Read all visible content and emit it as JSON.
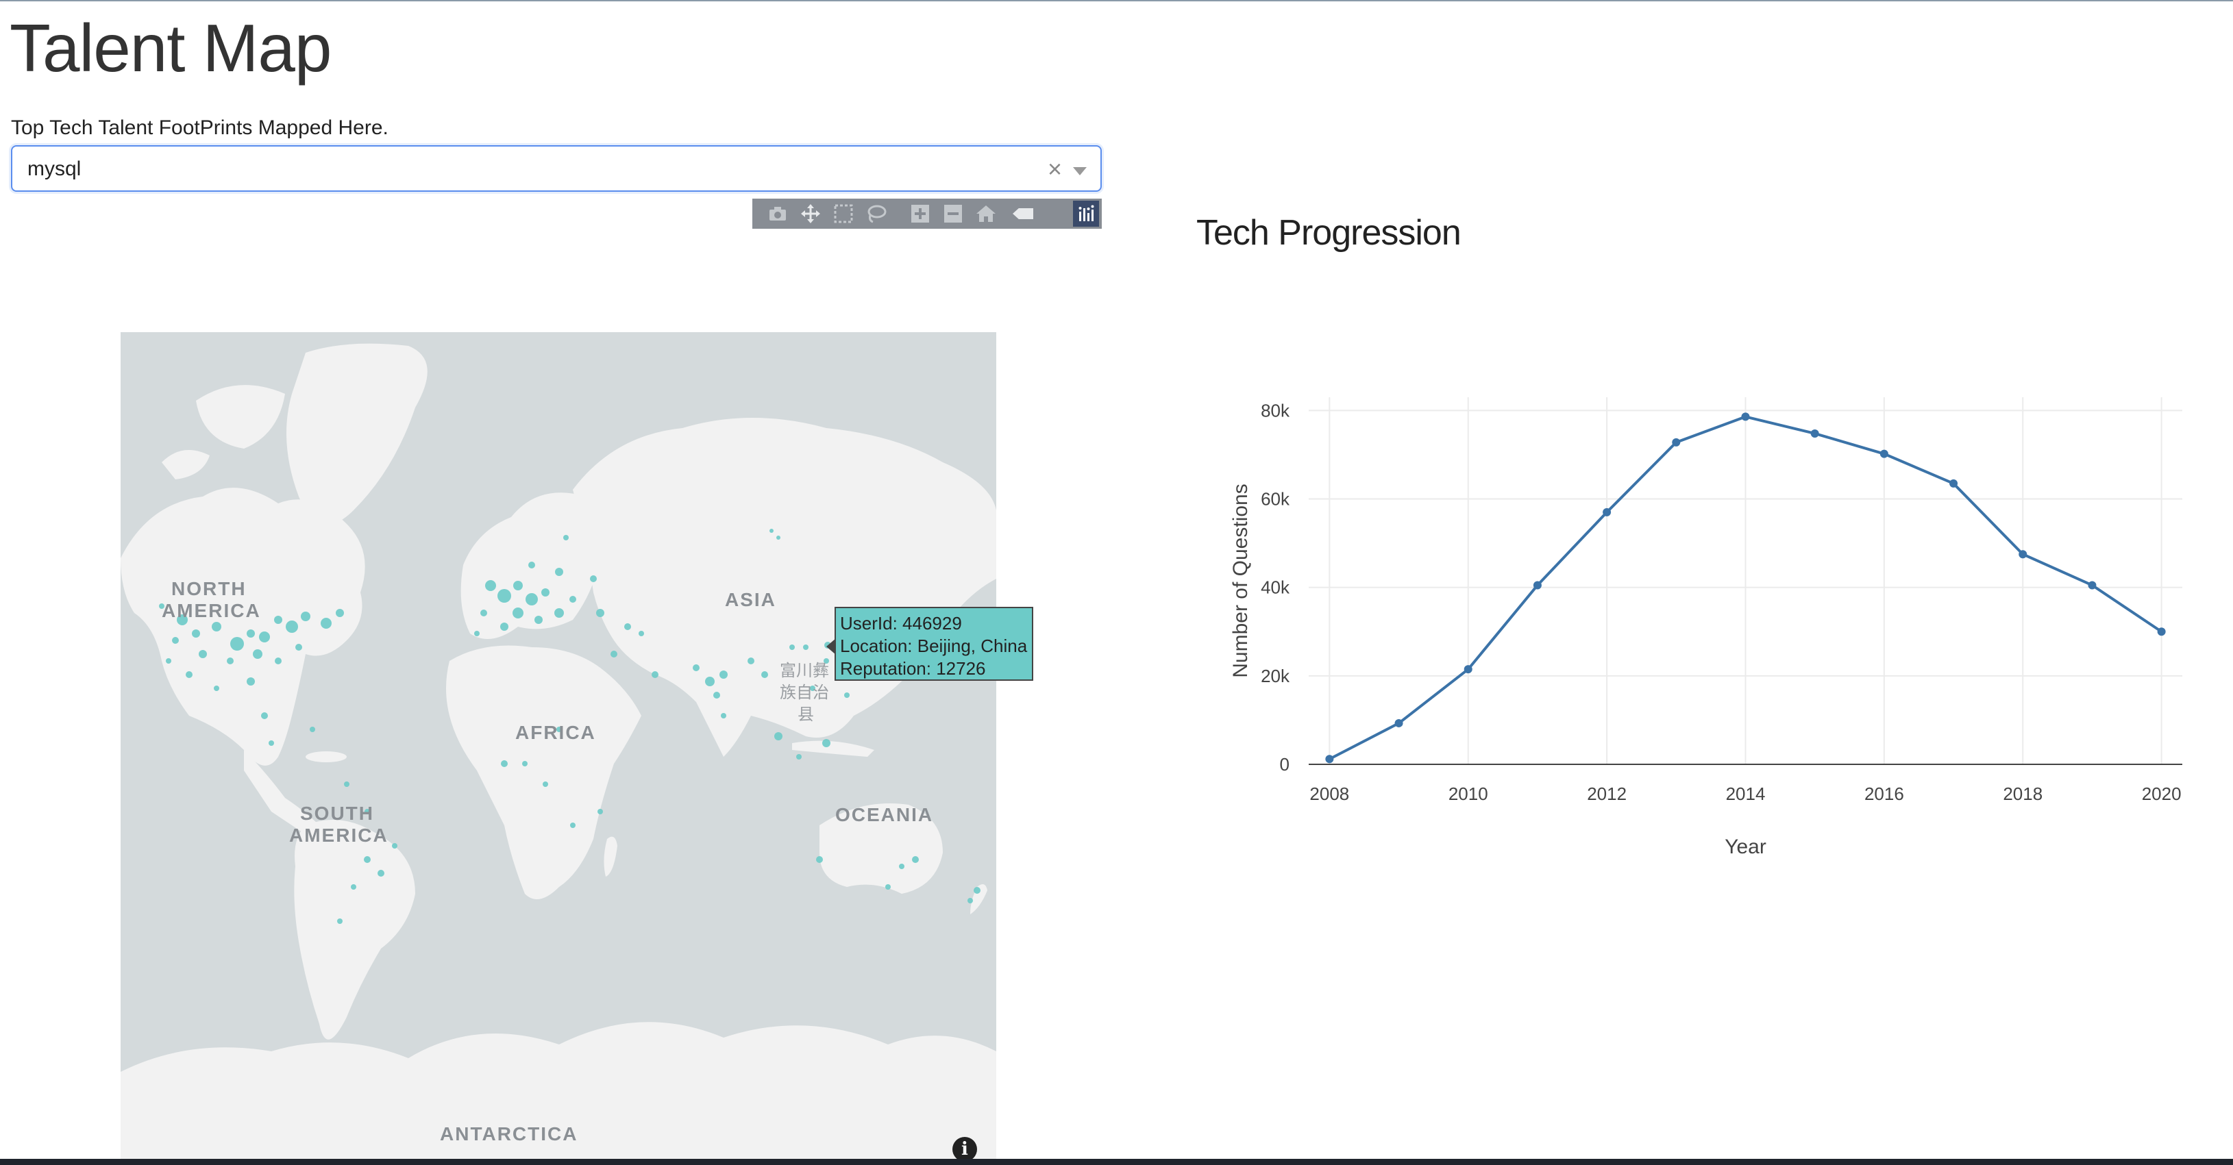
{
  "header": {
    "title": "Talent Map",
    "subtitle": "Top Tech Talent FootPrints Mapped Here."
  },
  "tech_select": {
    "value": "mysql",
    "clear_glyph": "×"
  },
  "modebar": {
    "buttons": [
      "camera-icon",
      "pan-icon",
      "box-select-icon",
      "lasso-icon",
      "zoom-in-icon",
      "zoom-out-icon",
      "reset-home-icon",
      "toggle-hover-icon",
      "plotly-logo-icon"
    ]
  },
  "map": {
    "labels": {
      "north_america": [
        "NORTH",
        "AMERICA"
      ],
      "south_america": [
        "SOUTH",
        "AMERICA"
      ],
      "asia": "ASIA",
      "africa": "AFRICA",
      "oceania": "OCEANIA",
      "antarctica": "ANTARCTICA",
      "china_place_glyphs": [
        "富川彝",
        "族自治",
        "县"
      ]
    },
    "colors": {
      "water": "#d4dadc",
      "land": "#f2f2f2",
      "marker": "#6dcbc8"
    },
    "tooltip": {
      "lines": [
        "UserId: 446929",
        "Location: Beijing, China",
        "Reputation: 12726"
      ]
    },
    "info_glyph": "i"
  },
  "chart_title": "Tech Progression",
  "chart_data": {
    "type": "line",
    "x": [
      2008,
      2009,
      2010,
      2011,
      2012,
      2013,
      2014,
      2015,
      2016,
      2017,
      2018,
      2019,
      2020
    ],
    "y": [
      1200,
      9300,
      21500,
      40500,
      57000,
      72800,
      78600,
      74800,
      70200,
      63500,
      47500,
      40500,
      30000
    ],
    "xlabel": "Year",
    "ylabel": "Number of Questions",
    "xticks": [
      2008,
      2010,
      2012,
      2014,
      2016,
      2018,
      2020
    ],
    "yticks": [
      0,
      20000,
      40000,
      60000,
      80000
    ],
    "ytick_labels": [
      "0",
      "20k",
      "40k",
      "60k",
      "80k"
    ],
    "xlim": [
      2007.7,
      2020.3
    ],
    "ylim": [
      0,
      83000
    ],
    "grid": true,
    "line_color": "#3b73a8"
  }
}
